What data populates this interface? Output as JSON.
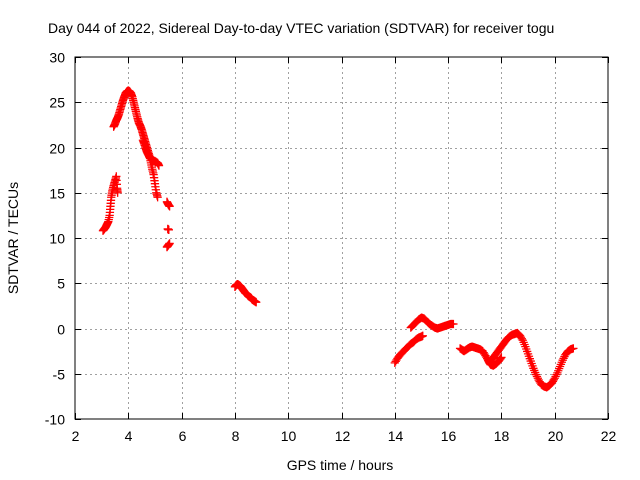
{
  "chart_data": {
    "type": "scatter",
    "title": "Day 044 of 2022, Sidereal Day-to-day VTEC variation (SDTVAR) for receiver togu",
    "xlabel": "GPS time / hours",
    "ylabel": "SDTVAR / TECUs",
    "xlim": [
      2,
      22
    ],
    "ylim": [
      -10,
      30
    ],
    "xticks": [
      2,
      4,
      6,
      8,
      10,
      12,
      14,
      16,
      18,
      20,
      22
    ],
    "yticks": [
      -10,
      -5,
      0,
      5,
      10,
      15,
      20,
      25,
      30
    ],
    "grid": true,
    "marker": "+",
    "series": [
      {
        "name": "SDTVAR",
        "color": "#ff0000",
        "segments": [
          [
            [
              3.05,
              10.8
            ],
            [
              3.1,
              11.0
            ],
            [
              3.15,
              11.2
            ],
            [
              3.2,
              11.5
            ],
            [
              3.25,
              11.8
            ],
            [
              3.3,
              12.5
            ],
            [
              3.33,
              13.5
            ],
            [
              3.36,
              14.5
            ],
            [
              3.4,
              15.2
            ],
            [
              3.45,
              15.8
            ],
            [
              3.5,
              16.3
            ],
            [
              3.55,
              16.8
            ],
            [
              3.58,
              15.5
            ],
            [
              3.6,
              15.0
            ]
          ],
          [
            [
              3.45,
              22.3
            ],
            [
              3.5,
              22.6
            ],
            [
              3.55,
              23.0
            ],
            [
              3.6,
              23.3
            ],
            [
              3.65,
              23.7
            ],
            [
              3.7,
              24.2
            ],
            [
              3.75,
              24.7
            ],
            [
              3.8,
              25.2
            ],
            [
              3.85,
              25.6
            ],
            [
              3.9,
              26.0
            ],
            [
              3.95,
              26.2
            ],
            [
              4.0,
              26.3
            ],
            [
              4.05,
              26.2
            ],
            [
              4.1,
              26.0
            ],
            [
              4.15,
              25.6
            ],
            [
              4.2,
              25.0
            ],
            [
              4.25,
              24.4
            ],
            [
              4.3,
              23.8
            ],
            [
              4.35,
              23.2
            ],
            [
              4.4,
              22.7
            ],
            [
              4.45,
              22.4
            ],
            [
              4.5,
              22.0
            ],
            [
              4.55,
              21.5
            ],
            [
              4.6,
              21.0
            ],
            [
              4.65,
              20.5
            ],
            [
              4.7,
              20.0
            ],
            [
              4.75,
              19.5
            ],
            [
              4.8,
              19.0
            ],
            [
              4.85,
              18.3
            ],
            [
              4.9,
              17.6
            ],
            [
              4.95,
              17.0
            ],
            [
              5.0,
              16.0
            ],
            [
              5.05,
              15.0
            ],
            [
              5.1,
              14.5
            ]
          ],
          [
            [
              4.55,
              20.8
            ],
            [
              4.6,
              20.4
            ],
            [
              4.65,
              19.9
            ],
            [
              4.7,
              19.5
            ],
            [
              4.75,
              19.2
            ],
            [
              4.8,
              18.9
            ],
            [
              4.9,
              18.6
            ],
            [
              5.0,
              18.5
            ],
            [
              5.1,
              18.3
            ],
            [
              5.15,
              18.0
            ]
          ],
          [
            [
              5.45,
              14.0
            ],
            [
              5.5,
              13.7
            ],
            [
              5.55,
              13.5
            ]
          ],
          [
            [
              5.48,
              11.0
            ],
            [
              5.52,
              10.9
            ]
          ],
          [
            [
              5.45,
              9.0
            ],
            [
              5.5,
              9.2
            ],
            [
              5.55,
              9.4
            ]
          ],
          [
            [
              8.0,
              4.6
            ],
            [
              8.05,
              4.8
            ],
            [
              8.1,
              4.9
            ],
            [
              8.15,
              4.8
            ],
            [
              8.2,
              4.7
            ],
            [
              8.25,
              4.5
            ],
            [
              8.3,
              4.3
            ],
            [
              8.35,
              4.1
            ],
            [
              8.4,
              3.9
            ],
            [
              8.45,
              3.8
            ],
            [
              8.5,
              3.6
            ],
            [
              8.55,
              3.5
            ],
            [
              8.6,
              3.4
            ],
            [
              8.65,
              3.2
            ],
            [
              8.7,
              3.1
            ],
            [
              8.75,
              3.0
            ],
            [
              8.8,
              2.9
            ]
          ],
          [
            [
              14.0,
              -3.8
            ],
            [
              14.1,
              -3.3
            ],
            [
              14.2,
              -2.9
            ],
            [
              14.3,
              -2.6
            ],
            [
              14.4,
              -2.3
            ],
            [
              14.5,
              -2.0
            ],
            [
              14.6,
              -1.7
            ],
            [
              14.7,
              -1.5
            ],
            [
              14.8,
              -1.2
            ],
            [
              14.9,
              -1.0
            ],
            [
              15.0,
              -0.9
            ],
            [
              15.05,
              -0.8
            ]
          ],
          [
            [
              14.6,
              0.1
            ],
            [
              14.7,
              0.4
            ],
            [
              14.8,
              0.7
            ],
            [
              14.9,
              1.0
            ],
            [
              15.0,
              1.2
            ],
            [
              15.1,
              1.1
            ],
            [
              15.2,
              0.8
            ],
            [
              15.3,
              0.5
            ],
            [
              15.4,
              0.3
            ],
            [
              15.5,
              0.1
            ],
            [
              15.6,
              0.0
            ],
            [
              15.7,
              0.1
            ],
            [
              15.8,
              0.2
            ],
            [
              15.9,
              0.3
            ],
            [
              16.0,
              0.4
            ],
            [
              16.1,
              0.5
            ],
            [
              16.2,
              0.5
            ]
          ],
          [
            [
              16.45,
              -2.2
            ],
            [
              16.55,
              -2.4
            ],
            [
              16.6,
              -2.5
            ],
            [
              16.7,
              -2.3
            ],
            [
              16.8,
              -2.1
            ],
            [
              16.9,
              -2.0
            ],
            [
              17.0,
              -2.1
            ],
            [
              17.1,
              -2.2
            ],
            [
              17.2,
              -2.3
            ],
            [
              17.3,
              -2.5
            ],
            [
              17.4,
              -3.0
            ],
            [
              17.5,
              -3.5
            ],
            [
              17.55,
              -3.8
            ],
            [
              17.6,
              -4.0
            ],
            [
              17.7,
              -4.1
            ],
            [
              17.8,
              -3.9
            ],
            [
              17.9,
              -3.6
            ],
            [
              18.0,
              -3.2
            ]
          ],
          [
            [
              17.6,
              -3.5
            ],
            [
              17.7,
              -3.2
            ],
            [
              17.8,
              -2.8
            ],
            [
              17.9,
              -2.4
            ],
            [
              18.0,
              -2.0
            ],
            [
              18.1,
              -1.6
            ],
            [
              18.2,
              -1.2
            ],
            [
              18.3,
              -0.9
            ],
            [
              18.4,
              -0.7
            ],
            [
              18.5,
              -0.6
            ],
            [
              18.6,
              -0.5
            ],
            [
              18.7,
              -0.8
            ],
            [
              18.8,
              -1.3
            ],
            [
              18.9,
              -2.0
            ],
            [
              19.0,
              -2.8
            ],
            [
              19.1,
              -3.6
            ],
            [
              19.2,
              -4.4
            ],
            [
              19.3,
              -5.1
            ],
            [
              19.4,
              -5.7
            ],
            [
              19.5,
              -6.2
            ],
            [
              19.6,
              -6.4
            ],
            [
              19.7,
              -6.5
            ],
            [
              19.8,
              -6.3
            ],
            [
              19.9,
              -6.0
            ],
            [
              20.0,
              -5.5
            ],
            [
              20.1,
              -4.9
            ],
            [
              20.2,
              -4.2
            ],
            [
              20.3,
              -3.5
            ],
            [
              20.4,
              -2.9
            ],
            [
              20.5,
              -2.5
            ],
            [
              20.6,
              -2.3
            ],
            [
              20.7,
              -2.2
            ]
          ]
        ]
      }
    ]
  }
}
